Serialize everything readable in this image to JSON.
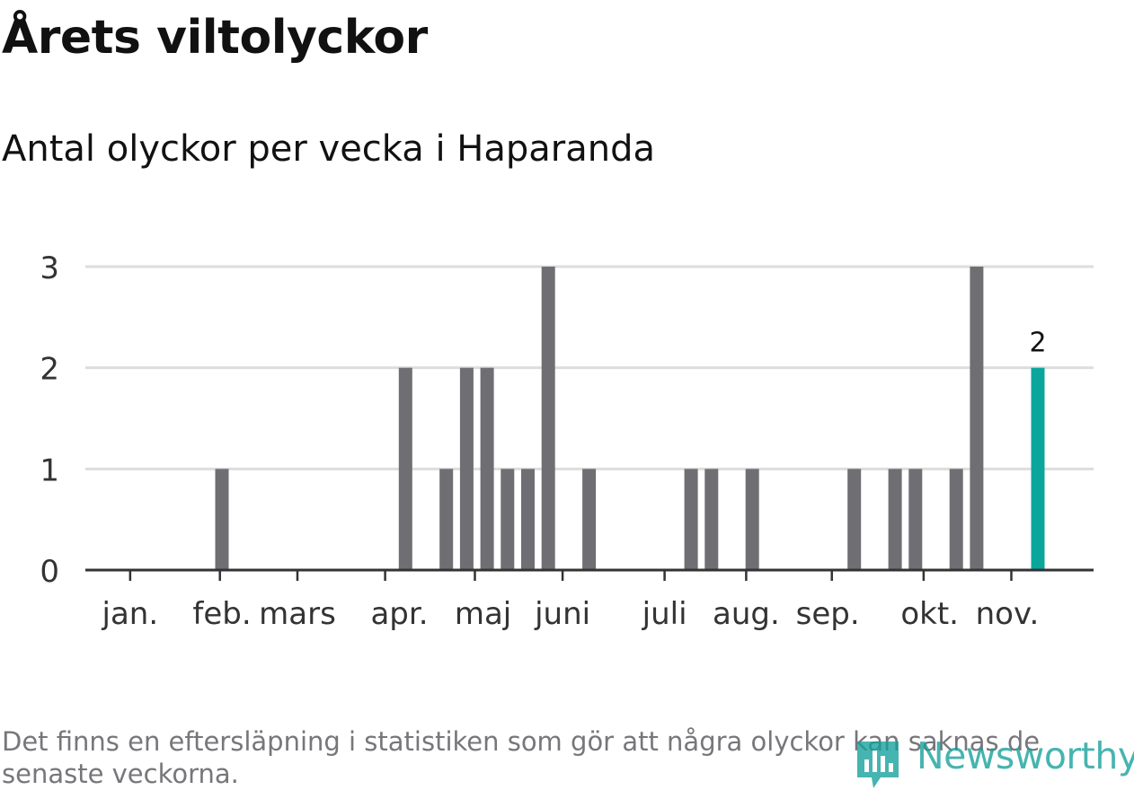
{
  "title": "Årets viltolyckor",
  "subtitle": "Antal olyckor per vecka i Haparanda",
  "footnote": "Det finns en eftersläpning i statistiken som gör att några olyckor kan saknas de senaste veckorna.",
  "brand": {
    "name": "Newsworthy",
    "icon": "newsworthy-logo-icon"
  },
  "colors": {
    "bar": "#6f6e73",
    "highlight": "#0aa69c",
    "grid": "#dddddd",
    "axis": "#333333",
    "text": "#111111"
  },
  "chart_data": {
    "type": "bar",
    "x_unit": "week",
    "weeks": [
      1,
      2,
      3,
      4,
      5,
      6,
      7,
      8,
      9,
      10,
      11,
      12,
      13,
      14,
      15,
      16,
      17,
      18,
      19,
      20,
      21,
      22,
      23,
      24,
      25,
      26,
      27,
      28,
      29,
      30,
      31,
      32,
      33,
      34,
      35,
      36,
      37,
      38,
      39,
      40,
      41,
      42,
      43,
      44,
      45,
      46
    ],
    "values": [
      0,
      0,
      0,
      0,
      0,
      1,
      0,
      0,
      0,
      0,
      0,
      0,
      0,
      0,
      2,
      0,
      1,
      2,
      2,
      1,
      1,
      3,
      0,
      1,
      0,
      0,
      0,
      0,
      1,
      1,
      0,
      1,
      0,
      0,
      0,
      0,
      1,
      0,
      1,
      1,
      0,
      1,
      3,
      0,
      0,
      2
    ],
    "highlight_week": 46,
    "highlight_label": "2",
    "month_labels": [
      {
        "label": "jan.",
        "week": 1.5
      },
      {
        "label": "feb.",
        "week": 6
      },
      {
        "label": "mars",
        "week": 9.7
      },
      {
        "label": "apr.",
        "week": 14.7
      },
      {
        "label": "maj",
        "week": 18.8
      },
      {
        "label": "juni",
        "week": 22.7
      },
      {
        "label": "juli",
        "week": 27.7
      },
      {
        "label": "aug.",
        "week": 31.7
      },
      {
        "label": "sep.",
        "week": 35.7
      },
      {
        "label": "okt.",
        "week": 40.7
      },
      {
        "label": "nov.",
        "week": 44.5
      }
    ],
    "month_ticks": [
      1.5,
      5.9,
      9.7,
      14.0,
      18.4,
      22.7,
      27.7,
      31.7,
      35.9,
      40.4,
      44.7
    ],
    "y_ticks": [
      0,
      1,
      2,
      3
    ],
    "ylim": [
      0,
      3
    ],
    "grid": true
  }
}
